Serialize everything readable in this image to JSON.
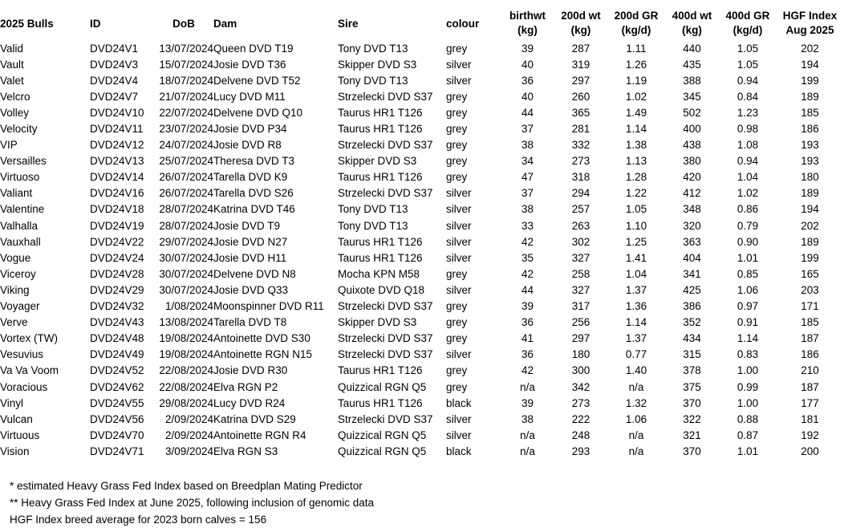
{
  "table": {
    "columns": [
      {
        "label": "2025 Bulls"
      },
      {
        "label": "ID"
      },
      {
        "label": "DoB"
      },
      {
        "label": "Dam"
      },
      {
        "label": "Sire"
      },
      {
        "label": "colour"
      },
      {
        "label": "birthwt",
        "label2": "(kg)"
      },
      {
        "label": "200d wt",
        "label2": "(kg)"
      },
      {
        "label": "200d GR",
        "label2": "(kg/d)"
      },
      {
        "label": "400d wt",
        "label2": "(kg)"
      },
      {
        "label": "400d GR",
        "label2": "(kg/d)"
      },
      {
        "label": "HGF Index",
        "label2": "Aug 2025"
      }
    ],
    "rows": [
      [
        "Valid",
        "DVD24V1",
        "13/07/2024",
        "Queen DVD T19",
        "Tony DVD T13",
        "grey",
        "39",
        "287",
        "1.11",
        "440",
        "1.05",
        "202"
      ],
      [
        "Vault",
        "DVD24V3",
        "15/07/2024",
        "Josie DVD T36",
        "Skipper DVD S3",
        "silver",
        "40",
        "319",
        "1.26",
        "435",
        "1.05",
        "194"
      ],
      [
        "Valet",
        "DVD24V4",
        "18/07/2024",
        "Delvene DVD T52",
        "Tony DVD T13",
        "silver",
        "36",
        "297",
        "1.19",
        "388",
        "0.94",
        "199"
      ],
      [
        "Velcro",
        "DVD24V7",
        "21/07/2024",
        "Lucy DVD M11",
        "Strzelecki DVD S37",
        "grey",
        "40",
        "260",
        "1.02",
        "345",
        "0.84",
        "189"
      ],
      [
        "Volley",
        "DVD24V10",
        "22/07/2024",
        "Delvene DVD Q10",
        "Taurus HR1 T126",
        "grey",
        "44",
        "365",
        "1.49",
        "502",
        "1.23",
        "185"
      ],
      [
        "Velocity",
        "DVD24V11",
        "23/07/2024",
        "Josie DVD P34",
        "Taurus HR1 T126",
        "grey",
        "37",
        "281",
        "1.14",
        "400",
        "0.98",
        "186"
      ],
      [
        "VIP",
        "DVD24V12",
        "24/07/2024",
        "Josie DVD R8",
        "Strzelecki DVD S37",
        "grey",
        "38",
        "332",
        "1.38",
        "438",
        "1.08",
        "193"
      ],
      [
        "Versailles",
        "DVD24V13",
        "25/07/2024",
        "Theresa DVD T3",
        "Skipper DVD S3",
        "grey",
        "34",
        "273",
        "1.13",
        "380",
        "0.94",
        "193"
      ],
      [
        "Virtuoso",
        "DVD24V14",
        "26/07/2024",
        "Tarella DVD K9",
        "Taurus HR1 T126",
        "grey",
        "47",
        "318",
        "1.28",
        "420",
        "1.04",
        "180"
      ],
      [
        "Valiant",
        "DVD24V16",
        "26/07/2024",
        "Tarella DVD S26",
        "Strzelecki DVD S37",
        "silver",
        "37",
        "294",
        "1.22",
        "412",
        "1.02",
        "189"
      ],
      [
        "Valentine",
        "DVD24V18",
        "28/07/2024",
        "Katrina DVD T46",
        "Tony DVD T13",
        "silver",
        "38",
        "257",
        "1.05",
        "348",
        "0.86",
        "194"
      ],
      [
        "Valhalla",
        "DVD24V19",
        "28/07/2024",
        "Josie DVD T9",
        "Tony DVD T13",
        "silver",
        "33",
        "263",
        "1.10",
        "320",
        "0.79",
        "202"
      ],
      [
        "Vauxhall",
        "DVD24V22",
        "29/07/2024",
        "Josie DVD N27",
        "Taurus HR1 T126",
        "silver",
        "42",
        "302",
        "1.25",
        "363",
        "0.90",
        "189"
      ],
      [
        "Vogue",
        "DVD24V24",
        "30/07/2024",
        "Josie DVD H11",
        "Taurus HR1 T126",
        "silver",
        "35",
        "327",
        "1.41",
        "404",
        "1.01",
        "199"
      ],
      [
        "Viceroy",
        "DVD24V28",
        "30/07/2024",
        "Delvene DVD N8",
        "Mocha KPN M58",
        "grey",
        "42",
        "258",
        "1.04",
        "341",
        "0.85",
        "165"
      ],
      [
        "Viking",
        "DVD24V29",
        "30/07/2024",
        "Josie DVD Q33",
        "Quixote DVD Q18",
        "silver",
        "44",
        "327",
        "1.37",
        "425",
        "1.06",
        "203"
      ],
      [
        "Voyager",
        "DVD24V32",
        "1/08/2024",
        "Moonspinner DVD R11",
        "Strzelecki DVD S37",
        "grey",
        "39",
        "317",
        "1.36",
        "386",
        "0.97",
        "171"
      ],
      [
        "Verve",
        "DVD24V43",
        "13/08/2024",
        "Tarella DVD T8",
        "Skipper DVD S3",
        "grey",
        "36",
        "256",
        "1.14",
        "352",
        "0.91",
        "185"
      ],
      [
        "Vortex (TW)",
        "DVD24V48",
        "19/08/2024",
        "Antoinette DVD S30",
        "Strzelecki DVD S37",
        "grey",
        "41",
        "297",
        "1.37",
        "434",
        "1.14",
        "187"
      ],
      [
        "Vesuvius",
        "DVD24V49",
        "19/08/2024",
        "Antoinette RGN N15",
        "Strzelecki DVD S37",
        "silver",
        "36",
        "180",
        "0.77",
        "315",
        "0.83",
        "186"
      ],
      [
        "Va Va Voom",
        "DVD24V52",
        "22/08/2024",
        "Josie DVD R30",
        "Taurus HR1 T126",
        "grey",
        "42",
        "300",
        "1.40",
        "378",
        "1.00",
        "210"
      ],
      [
        "Voracious",
        "DVD24V62",
        "22/08/2024",
        "Elva RGN P2",
        "Quizzical RGN Q5",
        "grey",
        "n/a",
        "342",
        "n/a",
        "375",
        "0.99",
        "187"
      ],
      [
        "Vinyl",
        "DVD24V55",
        "29/08/2024",
        "Lucy DVD R24",
        "Taurus HR1 T126",
        "black",
        "39",
        "273",
        "1.32",
        "370",
        "1.00",
        "177"
      ],
      [
        "Vulcan",
        "DVD24V56",
        "2/09/2024",
        "Katrina DVD S29",
        "Strzelecki DVD S37",
        "silver",
        "38",
        "222",
        "1.06",
        "322",
        "0.88",
        "181"
      ],
      [
        "Virtuous",
        "DVD24V70",
        "2/09/2024",
        "Antoinette RGN R4",
        "Quizzical RGN Q5",
        "silver",
        "n/a",
        "248",
        "n/a",
        "321",
        "0.87",
        "192"
      ],
      [
        "Vision",
        "DVD24V71",
        "3/09/2024",
        "Elva RGN S3",
        "Quizzical RGN Q5",
        "black",
        "n/a",
        "293",
        "n/a",
        "370",
        "1.01",
        "200"
      ]
    ]
  },
  "footnotes": [
    "* estimated Heavy Grass Fed Index based on Breedplan Mating Predictor",
    "** Heavy Grass Fed Index at June 2025, following inclusion of genomic data",
    "HGF Index breed average for 2023 born calves = 156"
  ]
}
